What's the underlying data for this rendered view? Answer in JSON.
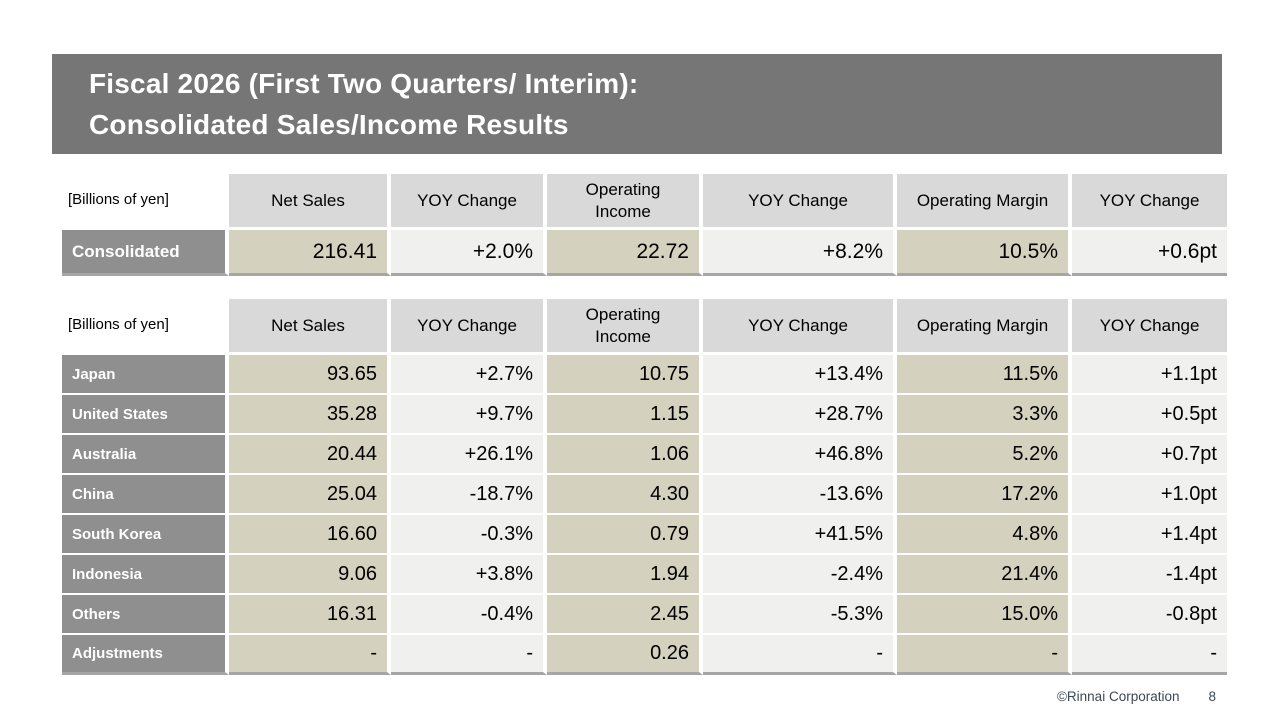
{
  "title": {
    "line1": "Fiscal 2026 (First Two Quarters/ Interim):",
    "line2": "Consolidated Sales/Income Results"
  },
  "unit_label": "[Billions of yen]",
  "column_headers": [
    "Net Sales",
    "YOY Change",
    "Operating Income",
    "YOY Change",
    "Operating Margin",
    "YOY Change"
  ],
  "consolidated_table": {
    "rows": [
      {
        "label": "Consolidated",
        "values": [
          "216.41",
          "+2.0%",
          "22.72",
          "+8.2%",
          "10.5%",
          "+0.6pt"
        ]
      }
    ]
  },
  "regional_table": {
    "rows": [
      {
        "label": "Japan",
        "values": [
          "93.65",
          "+2.7%",
          "10.75",
          "+13.4%",
          "11.5%",
          "+1.1pt"
        ]
      },
      {
        "label": "United States",
        "values": [
          "35.28",
          "+9.7%",
          "1.15",
          "+28.7%",
          "3.3%",
          "+0.5pt"
        ]
      },
      {
        "label": "Australia",
        "values": [
          "20.44",
          "+26.1%",
          "1.06",
          "+46.8%",
          "5.2%",
          "+0.7pt"
        ]
      },
      {
        "label": "China",
        "values": [
          "25.04",
          "-18.7%",
          "4.30",
          "-13.6%",
          "17.2%",
          "+1.0pt"
        ]
      },
      {
        "label": "South Korea",
        "values": [
          "16.60",
          "-0.3%",
          "0.79",
          "+41.5%",
          "4.8%",
          "+1.4pt"
        ]
      },
      {
        "label": "Indonesia",
        "values": [
          "9.06",
          "+3.8%",
          "1.94",
          "-2.4%",
          "21.4%",
          "-1.4pt"
        ]
      },
      {
        "label": "Others",
        "values": [
          "16.31",
          "-0.4%",
          "2.45",
          "-5.3%",
          "15.0%",
          "-0.8pt"
        ]
      },
      {
        "label": "Adjustments",
        "values": [
          "-",
          "-",
          "0.26",
          "-",
          "-",
          "-"
        ]
      }
    ]
  },
  "footer": {
    "copyright": "©Rinnai Corporation",
    "page": "8"
  },
  "colors": {
    "title_bar": "#767676",
    "header_cell": "#d9d9d9",
    "row_label_cell": "#8f8f8f",
    "value_cell_beige": "#d4d1be",
    "value_cell_gray": "#f0f0ee",
    "table_bottom_border": "#a6a6a6",
    "footer_text": "#3d4852"
  }
}
